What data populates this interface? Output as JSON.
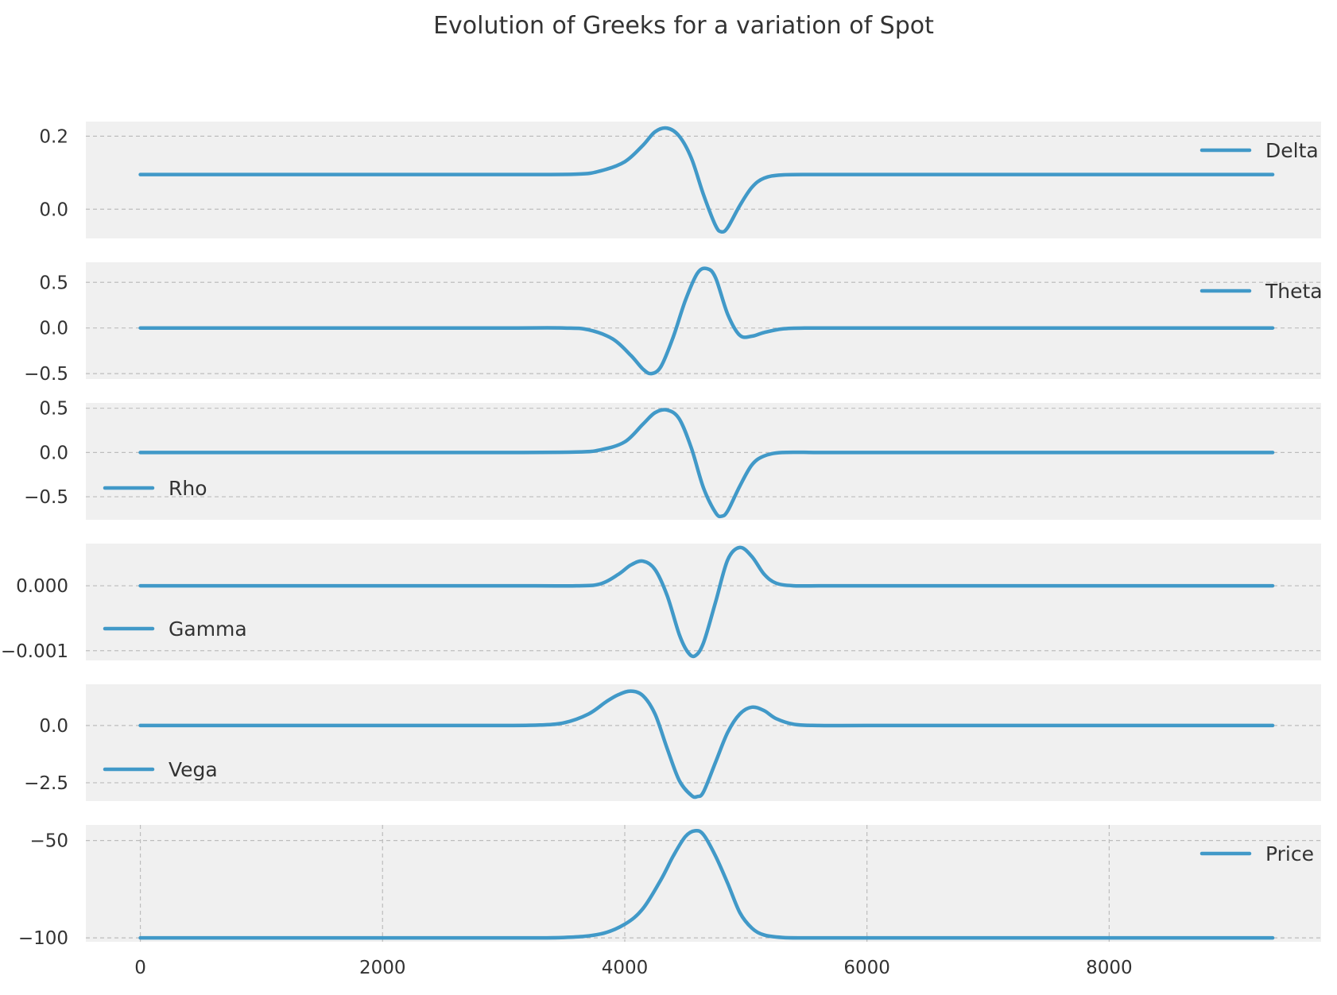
{
  "chart_data": {
    "type": "line",
    "title": "Evolution of Greeks for a variation of Spot",
    "line_color": "#4199c8",
    "grid": true,
    "xlim": [
      -450,
      9750
    ],
    "x_ticks": [
      0,
      2000,
      4000,
      6000,
      8000
    ],
    "x_tick_labels": [
      "0",
      "2000",
      "4000",
      "6000",
      "8000"
    ],
    "panels": [
      {
        "name": "Delta",
        "ylim": [
          -0.08,
          0.24
        ],
        "yticks": [
          0.0,
          0.2
        ],
        "ytick_labels": [
          "0.0",
          "0.2"
        ],
        "legend_position": "top-right",
        "series": [
          {
            "name": "Delta",
            "x": [
              0,
              1000,
              2000,
              3000,
              3600,
              3800,
              4000,
              4150,
              4250,
              4350,
              4450,
              4550,
              4650,
              4750,
              4800,
              4850,
              4950,
              5050,
              5150,
              5300,
              5600,
              6000,
              7000,
              8000,
              9350
            ],
            "y": [
              0.095,
              0.095,
              0.095,
              0.095,
              0.096,
              0.105,
              0.13,
              0.175,
              0.212,
              0.222,
              0.2,
              0.14,
              0.04,
              -0.045,
              -0.062,
              -0.05,
              0.01,
              0.06,
              0.085,
              0.094,
              0.095,
              0.095,
              0.095,
              0.095,
              0.095
            ]
          }
        ]
      },
      {
        "name": "Theta",
        "ylim": [
          -0.56,
          0.72
        ],
        "yticks": [
          -0.5,
          0.0,
          0.5
        ],
        "ytick_labels": [
          "−0.5",
          "0.0",
          "0.5"
        ],
        "legend_position": "top-right",
        "series": [
          {
            "name": "Theta",
            "x": [
              0,
              1000,
              2000,
              3000,
              3500,
              3700,
              3900,
              4050,
              4150,
              4220,
              4300,
              4400,
              4500,
              4600,
              4680,
              4750,
              4850,
              4950,
              5050,
              5150,
              5300,
              5500,
              6000,
              7000,
              8000,
              9350
            ],
            "y": [
              0,
              0,
              0,
              0,
              0,
              -0.02,
              -0.12,
              -0.3,
              -0.45,
              -0.5,
              -0.42,
              -0.1,
              0.3,
              0.6,
              0.65,
              0.55,
              0.15,
              -0.08,
              -0.09,
              -0.05,
              -0.01,
              0,
              0,
              0,
              0,
              0
            ]
          }
        ]
      },
      {
        "name": "Rho",
        "ylim": [
          -0.76,
          0.56
        ],
        "yticks": [
          -0.5,
          0.0,
          0.5
        ],
        "ytick_labels": [
          "−0.5",
          "0.0",
          "0.5"
        ],
        "legend_position": "lower-left",
        "series": [
          {
            "name": "Rho",
            "x": [
              0,
              1000,
              2000,
              3000,
              3600,
              3800,
              4000,
              4150,
              4250,
              4350,
              4450,
              4550,
              4650,
              4750,
              4800,
              4850,
              4950,
              5050,
              5150,
              5300,
              5600,
              6000,
              7000,
              8000,
              9350
            ],
            "y": [
              0,
              0,
              0,
              0,
              0.005,
              0.03,
              0.12,
              0.32,
              0.45,
              0.48,
              0.38,
              0.05,
              -0.4,
              -0.68,
              -0.72,
              -0.66,
              -0.38,
              -0.14,
              -0.04,
              0,
              0,
              0,
              0,
              0,
              0
            ]
          }
        ]
      },
      {
        "name": "Gamma",
        "ylim": [
          -0.00115,
          0.00065
        ],
        "yticks": [
          -0.001,
          0.0
        ],
        "ytick_labels": [
          "−0.001",
          "0.000"
        ],
        "legend_position": "lower-left",
        "series": [
          {
            "name": "Gamma",
            "x": [
              0,
              1000,
              2000,
              3000,
              3600,
              3800,
              3950,
              4050,
              4150,
              4250,
              4350,
              4450,
              4520,
              4580,
              4650,
              4750,
              4850,
              4950,
              5050,
              5150,
              5250,
              5400,
              5600,
              6000,
              7000,
              8000,
              9350
            ],
            "y": [
              0,
              0,
              0,
              0,
              0,
              3e-05,
              0.00018,
              0.00032,
              0.00038,
              0.00025,
              -0.00015,
              -0.00075,
              -0.00102,
              -0.00108,
              -0.00088,
              -0.00025,
              0.0004,
              0.00059,
              0.00045,
              0.00018,
              4e-05,
              0,
              0,
              0,
              0,
              0,
              0
            ]
          }
        ]
      },
      {
        "name": "Vega",
        "ylim": [
          -3.3,
          1.8
        ],
        "yticks": [
          -2.5,
          0.0
        ],
        "ytick_labels": [
          "−2.5",
          "0.0"
        ],
        "legend_position": "lower-left",
        "series": [
          {
            "name": "Vega",
            "x": [
              0,
              1000,
              2000,
              3000,
              3300,
              3500,
              3700,
              3850,
              3950,
              4050,
              4150,
              4250,
              4350,
              4450,
              4550,
              4600,
              4650,
              4750,
              4850,
              4950,
              5050,
              5150,
              5250,
              5400,
              5600,
              6000,
              7000,
              8000,
              9350
            ],
            "y": [
              0,
              0,
              0,
              0,
              0.02,
              0.12,
              0.5,
              1.05,
              1.35,
              1.5,
              1.3,
              0.5,
              -1.0,
              -2.4,
              -3.05,
              -3.1,
              -2.9,
              -1.6,
              -0.3,
              0.5,
              0.8,
              0.65,
              0.3,
              0.05,
              0,
              0,
              0,
              0,
              0
            ]
          }
        ]
      },
      {
        "name": "Price",
        "ylim": [
          -102,
          -42
        ],
        "yticks": [
          -100,
          -50
        ],
        "ytick_labels": [
          "−100",
          "−50"
        ],
        "legend_position": "top-right",
        "series": [
          {
            "name": "Price",
            "x": [
              0,
              1000,
              2000,
              3000,
              3500,
              3800,
              4000,
              4150,
              4300,
              4400,
              4500,
              4580,
              4650,
              4750,
              4850,
              4950,
              5050,
              5150,
              5300,
              5500,
              6000,
              7000,
              8000,
              9350
            ],
            "y": [
              -100,
              -100,
              -100,
              -100,
              -99.8,
              -98,
              -93,
              -85,
              -70,
              -58,
              -48,
              -45,
              -47,
              -58,
              -72,
              -87,
              -95,
              -98.5,
              -99.8,
              -100,
              -100,
              -100,
              -100,
              -100
            ]
          }
        ]
      }
    ]
  }
}
